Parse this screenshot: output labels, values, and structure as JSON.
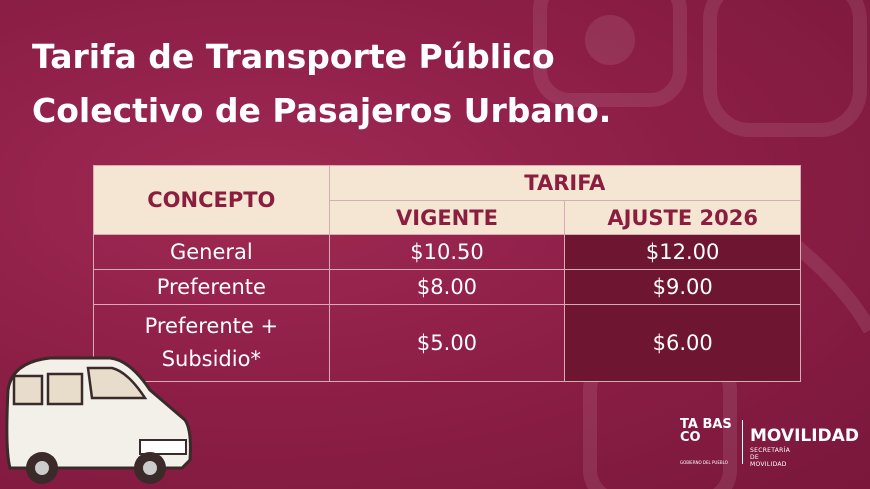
{
  "header": {
    "title_lines": [
      "Tarifa de Transporte Público",
      "Colectivo de Pasajeros Urbano."
    ]
  },
  "table": {
    "header": {
      "concept": "CONCEPTO",
      "group": "TARIFA",
      "columns": [
        "VIGENTE",
        "AJUSTE 2026"
      ]
    },
    "rows": [
      [
        "General",
        "$10.50",
        "$12.00"
      ],
      [
        "Preferente",
        "$8.00",
        "$9.00"
      ],
      [
        "Preferente + Subsidio*",
        "$5.00",
        "$6.00"
      ]
    ]
  },
  "footer": {
    "state": "TA BAS CO",
    "state_caption": "GOBIERNO DEL PUEBLO",
    "agency": "MOVILIDAD",
    "agency_caption": "SECRETARÍA DE MOVILIDAD"
  }
}
